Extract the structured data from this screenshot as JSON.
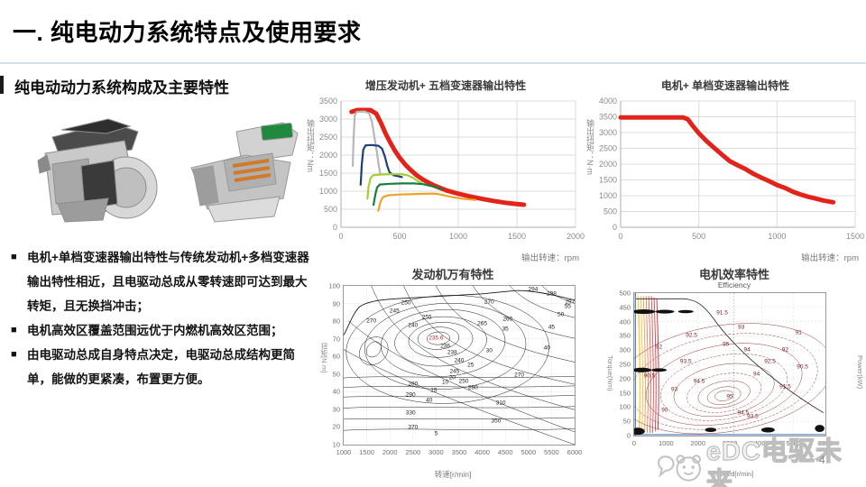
{
  "header": {
    "title": "一. 纯电动力系统特点及使用要求"
  },
  "left": {
    "subtitle": "纯电动动力系统构成及主要特性",
    "bullet_marker": "■",
    "images": [
      "engine-transmission-photo",
      "edrive-assembly-photo"
    ],
    "bullets": [
      "电机+单档变速器输出特性与传统发动机+多档变速器输出特性相近，且电驱动总成从零转速即可达到最大转矩，且无换挡冲击；",
      "电机高效区覆盖范围远优于内燃机高效区范围；",
      "由电驱动总成自身特点决定，电驱动总成结构更简单，能做的更紧凑，布置更方便。"
    ]
  },
  "watermark": {
    "brand": "eDC电驱未来"
  },
  "page": {
    "number": "4"
  },
  "chart_data": [
    {
      "id": "chart1",
      "type": "line",
      "title": "增压发动机+ 五档变速器输出特性",
      "xlabel": "输出转速：rpm",
      "ylabel": "输出扭矩：Nm",
      "xlim": [
        0,
        2000
      ],
      "ylim": [
        0,
        3500
      ],
      "xticks": [
        0,
        500,
        1000,
        1500,
        2000
      ],
      "yticks": [
        0,
        500,
        1000,
        1500,
        2000,
        2500,
        3000,
        3500
      ],
      "grid": true,
      "legend": "none",
      "series": [
        {
          "name": "max-envelope",
          "color": "#e2231a",
          "width": 5,
          "points": [
            [
              90,
              3200
            ],
            [
              140,
              3250
            ],
            [
              250,
              3250
            ],
            [
              300,
              3150
            ],
            [
              340,
              2900
            ],
            [
              380,
              2600
            ],
            [
              420,
              2350
            ],
            [
              460,
              2120
            ],
            [
              500,
              1930
            ],
            [
              550,
              1730
            ],
            [
              600,
              1570
            ],
            [
              650,
              1430
            ],
            [
              700,
              1320
            ],
            [
              750,
              1230
            ],
            [
              800,
              1150
            ],
            [
              900,
              1020
            ],
            [
              1000,
              930
            ],
            [
              1100,
              855
            ],
            [
              1200,
              790
            ],
            [
              1300,
              730
            ],
            [
              1400,
              680
            ],
            [
              1480,
              650
            ],
            [
              1560,
              625
            ]
          ]
        },
        {
          "name": "gear1",
          "color": "#b7b7b7",
          "width": 2.2,
          "points": [
            [
              100,
              1700
            ],
            [
              108,
              2500
            ],
            [
              118,
              3100
            ],
            [
              135,
              3200
            ],
            [
              200,
              3210
            ],
            [
              240,
              3160
            ],
            [
              265,
              2900
            ],
            [
              285,
              2500
            ],
            [
              305,
              2100
            ],
            [
              320,
              1750
            ],
            [
              335,
              1480
            ]
          ]
        },
        {
          "name": "gear2",
          "color": "#1f3f77",
          "width": 2.2,
          "points": [
            [
              168,
              1180
            ],
            [
              178,
              1750
            ],
            [
              190,
              2150
            ],
            [
              210,
              2270
            ],
            [
              260,
              2280
            ],
            [
              320,
              2260
            ],
            [
              350,
              2180
            ],
            [
              375,
              1950
            ],
            [
              395,
              1700
            ],
            [
              415,
              1520
            ],
            [
              450,
              1440
            ],
            [
              495,
              1410
            ],
            [
              520,
              1390
            ]
          ]
        },
        {
          "name": "gear3",
          "color": "#a6ce39",
          "width": 2.2,
          "points": [
            [
              225,
              790
            ],
            [
              235,
              1120
            ],
            [
              252,
              1360
            ],
            [
              272,
              1440
            ],
            [
              330,
              1460
            ],
            [
              420,
              1470
            ],
            [
              510,
              1470
            ],
            [
              570,
              1440
            ],
            [
              620,
              1360
            ],
            [
              660,
              1270
            ],
            [
              685,
              1230
            ]
          ]
        },
        {
          "name": "gear4",
          "color": "#15803d",
          "width": 2.2,
          "points": [
            [
              278,
              620
            ],
            [
              292,
              900
            ],
            [
              308,
              1100
            ],
            [
              330,
              1185
            ],
            [
              420,
              1205
            ],
            [
              520,
              1215
            ],
            [
              620,
              1215
            ],
            [
              700,
              1195
            ],
            [
              760,
              1150
            ],
            [
              820,
              1095
            ],
            [
              860,
              1060
            ]
          ]
        },
        {
          "name": "gear5",
          "color": "#f0a32a",
          "width": 2.2,
          "points": [
            [
              318,
              460
            ],
            [
              336,
              700
            ],
            [
              356,
              830
            ],
            [
              400,
              885
            ],
            [
              480,
              905
            ],
            [
              580,
              915
            ],
            [
              680,
              925
            ],
            [
              780,
              935
            ],
            [
              840,
              915
            ],
            [
              900,
              870
            ],
            [
              960,
              830
            ],
            [
              1030,
              795
            ],
            [
              1100,
              770
            ],
            [
              1150,
              755
            ]
          ]
        }
      ]
    },
    {
      "id": "chart2",
      "type": "line",
      "title": "电机+ 单档变速器输出特性",
      "xlabel": "输出转速：rpm",
      "ylabel": "输出扭矩：N·m",
      "xlim": [
        0,
        1500
      ],
      "ylim": [
        0,
        4000
      ],
      "xticks": [
        0,
        500,
        1000,
        1500
      ],
      "yticks": [
        0,
        500,
        1000,
        1500,
        2000,
        2500,
        3000,
        3500,
        4000
      ],
      "grid": true,
      "legend": "none",
      "series": [
        {
          "name": "motor-output",
          "color": "#e2231a",
          "width": 5,
          "points": [
            [
              0,
              3480
            ],
            [
              400,
              3480
            ],
            [
              430,
              3420
            ],
            [
              460,
              3220
            ],
            [
              500,
              2980
            ],
            [
              550,
              2730
            ],
            [
              600,
              2510
            ],
            [
              650,
              2290
            ],
            [
              700,
              2090
            ],
            [
              750,
              1960
            ],
            [
              800,
              1840
            ],
            [
              850,
              1690
            ],
            [
              900,
              1570
            ],
            [
              950,
              1460
            ],
            [
              1000,
              1340
            ],
            [
              1050,
              1250
            ],
            [
              1100,
              1130
            ],
            [
              1150,
              1040
            ],
            [
              1200,
              965
            ],
            [
              1250,
              905
            ],
            [
              1300,
              845
            ],
            [
              1360,
              790
            ]
          ]
        }
      ]
    },
    {
      "id": "chart3",
      "type": "contour",
      "title": "发动机万有特性",
      "xlabel": "转速[r/min]",
      "ylabel": "扭矩[N·m]",
      "xticks": [
        1000,
        1500,
        2000,
        2500,
        3000,
        3500,
        4000,
        4500,
        5000,
        5500,
        6000
      ],
      "yticks": [
        10,
        20,
        30,
        40,
        50,
        60,
        70,
        80,
        90,
        100
      ],
      "best_bsfc": "235.6",
      "contour_labels": [
        {
          "v": "294",
          "x": 82,
          "y": 2
        },
        {
          "v": "298",
          "x": 90,
          "y": 5
        },
        {
          "v": "297",
          "x": 98,
          "y": 10
        },
        {
          "v": "270",
          "x": 63,
          "y": 10
        },
        {
          "v": "270",
          "x": 12,
          "y": 22
        },
        {
          "v": "270",
          "x": 76,
          "y": 56
        },
        {
          "v": "265",
          "x": 60,
          "y": 24
        },
        {
          "v": "260",
          "x": 71,
          "y": 21
        },
        {
          "v": "260",
          "x": 56,
          "y": 64
        },
        {
          "v": "255",
          "x": 36,
          "y": 20
        },
        {
          "v": "250",
          "x": 27,
          "y": 11
        },
        {
          "v": "250",
          "x": 52,
          "y": 60
        },
        {
          "v": "245",
          "x": 22,
          "y": 16
        },
        {
          "v": "245",
          "x": 48,
          "y": 54
        },
        {
          "v": "240",
          "x": 30,
          "y": 25
        },
        {
          "v": "240",
          "x": 50,
          "y": 47
        },
        {
          "v": "238",
          "x": 47,
          "y": 42
        },
        {
          "v": "236",
          "x": 44,
          "y": 38
        },
        {
          "v": "235.6",
          "x": 40,
          "y": 33,
          "c": "#cc2b2b"
        },
        {
          "v": "280",
          "x": 30,
          "y": 62
        },
        {
          "v": "290",
          "x": 29,
          "y": 69
        },
        {
          "v": "310",
          "x": 68,
          "y": 74
        },
        {
          "v": "330",
          "x": 29,
          "y": 80
        },
        {
          "v": "350",
          "x": 66,
          "y": 85
        },
        {
          "v": "370",
          "x": 30,
          "y": 89
        },
        {
          "v": "55",
          "x": 97,
          "y": 13
        },
        {
          "v": "50",
          "x": 94,
          "y": 18
        },
        {
          "v": "45",
          "x": 90,
          "y": 26
        },
        {
          "v": "40",
          "x": 88,
          "y": 39
        },
        {
          "v": "40",
          "x": 37,
          "y": 72
        },
        {
          "v": "35",
          "x": 70,
          "y": 27
        },
        {
          "v": "30",
          "x": 63,
          "y": 41
        },
        {
          "v": "25",
          "x": 55,
          "y": 50
        },
        {
          "v": "20",
          "x": 47,
          "y": 58
        },
        {
          "v": "15",
          "x": 39,
          "y": 66
        },
        {
          "v": "10",
          "x": 44,
          "y": 61
        },
        {
          "v": "5",
          "x": 40,
          "y": 93
        }
      ]
    },
    {
      "id": "chart4",
      "type": "contour",
      "title": "电机效率特性",
      "inner_title": "Efficiency",
      "xlabel": "Speed[r/min]",
      "ylabel": "Torque(Nm)",
      "ylabel_right": "Power(kW)",
      "xticks": [
        0,
        1000,
        2000,
        3000,
        4000,
        5000,
        6000
      ],
      "yticks": [
        0,
        50,
        100,
        150,
        200,
        250,
        300,
        350,
        400,
        450,
        500
      ],
      "contour_labels": [
        {
          "v": "95",
          "x": 48,
          "y": 36
        },
        {
          "v": "95",
          "x": 50,
          "y": 73
        },
        {
          "v": "94.5",
          "x": 34,
          "y": 62
        },
        {
          "v": "94.5",
          "x": 57,
          "y": 84
        },
        {
          "v": "94",
          "x": 64,
          "y": 57
        },
        {
          "v": "94",
          "x": 59,
          "y": 40
        },
        {
          "v": "93.5",
          "x": 27,
          "y": 48
        },
        {
          "v": "93.5",
          "x": 62,
          "y": 87
        },
        {
          "v": "93",
          "x": 56,
          "y": 24
        },
        {
          "v": "93",
          "x": 21,
          "y": 68
        },
        {
          "v": "92.5",
          "x": 71,
          "y": 48
        },
        {
          "v": "92.5",
          "x": 30,
          "y": 30
        },
        {
          "v": "92",
          "x": 79,
          "y": 40
        },
        {
          "v": "92",
          "x": 13,
          "y": 38
        },
        {
          "v": "91.5",
          "x": 46,
          "y": 14
        },
        {
          "v": "91.5",
          "x": 79,
          "y": 66
        },
        {
          "v": "91",
          "x": 86,
          "y": 28
        },
        {
          "v": "90.5",
          "x": 88,
          "y": 52
        },
        {
          "v": "90.5",
          "x": 8,
          "y": 58
        },
        {
          "v": "90",
          "x": 16,
          "y": 82
        }
      ]
    }
  ]
}
